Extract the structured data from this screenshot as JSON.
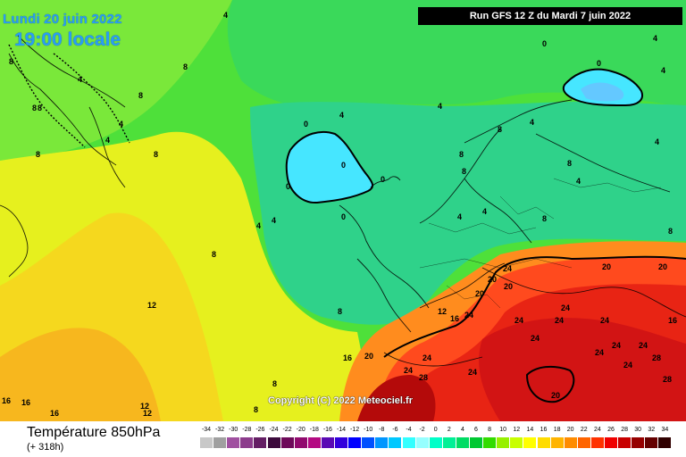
{
  "header": {
    "date": "Lundi 20 juin 2022",
    "time": "19:00 locale",
    "run": "Run GFS 12 Z du Mardi 7 juin 2022"
  },
  "copyright": "Copyright (C) 2022 Meteociel.fr",
  "footer": {
    "title": "Température 850hPa",
    "subtitle": "(+ 318h)"
  },
  "legend": {
    "ticks": [
      "-34",
      "-32",
      "-30",
      "-28",
      "-26",
      "-24",
      "-22",
      "-20",
      "-18",
      "-16",
      "-14",
      "-12",
      "-10",
      "-8",
      "-6",
      "-4",
      "-2",
      "0",
      "2",
      "4",
      "6",
      "8",
      "10",
      "12",
      "14",
      "16",
      "18",
      "20",
      "22",
      "24",
      "26",
      "28",
      "30",
      "32",
      "34"
    ],
    "colors": [
      "#c8c8c8",
      "#a0a0a0",
      "#a050a0",
      "#8c3c8c",
      "#641e64",
      "#3c0a3c",
      "#6e0a5a",
      "#910a6e",
      "#b40a82",
      "#5a0ab4",
      "#3200dc",
      "#0000ff",
      "#0050ff",
      "#0096ff",
      "#00c8ff",
      "#32ffff",
      "#96ffff",
      "#00ffc8",
      "#00f096",
      "#00dc64",
      "#00c832",
      "#32dc00",
      "#96f000",
      "#c8ff00",
      "#ffff00",
      "#ffdc00",
      "#ffb400",
      "#ff8c00",
      "#ff6400",
      "#ff3200",
      "#f00000",
      "#c80000",
      "#960000",
      "#640000",
      "#300000"
    ]
  },
  "map": {
    "contour_labels": [
      "0",
      "4",
      "8",
      "12",
      "16",
      "20",
      "24",
      "28"
    ]
  }
}
